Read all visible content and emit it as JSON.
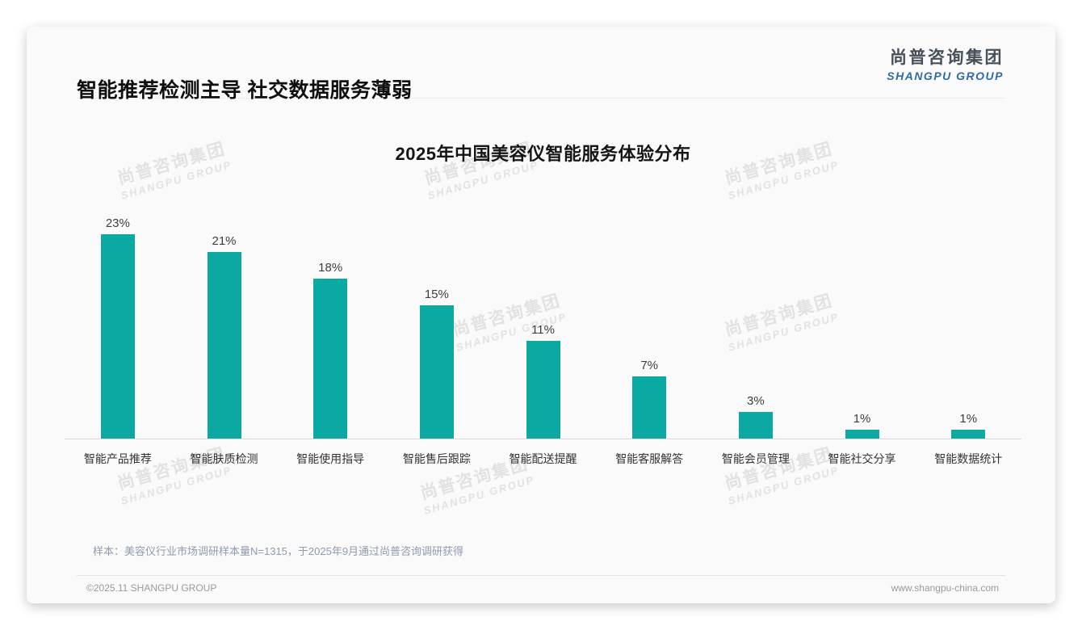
{
  "page": {
    "header": {
      "title": "智能推荐检测主导 社交数据服务薄弱"
    },
    "logo": {
      "cn": "尚普咨询集团",
      "en": "SHANGPU GROUP"
    },
    "watermark": {
      "cn": "尚普咨询集团",
      "en": "SHANGPU GROUP"
    },
    "footer": {
      "sample_note": "样本：美容仪行业市场调研样本量N=1315，于2025年9月通过尚普咨询调研获得",
      "copyright": "©2025.11 SHANGPU GROUP",
      "website": "www.shangpu-china.com"
    },
    "colors": {
      "bar": "#0ba9a1",
      "logo_cn": "#474f58",
      "logo_en": "#2d6ba9",
      "note": "#8e9cac"
    }
  },
  "chart_data": {
    "type": "bar",
    "title": "2025年中国美容仪智能服务体验分布",
    "categories": [
      "智能产品推荐",
      "智能肤质检测",
      "智能使用指导",
      "智能售后跟踪",
      "智能配送提醒",
      "智能客服解答",
      "智能会员管理",
      "智能社交分享",
      "智能数据统计"
    ],
    "values": [
      23,
      21,
      18,
      15,
      11,
      7,
      3,
      1,
      1
    ],
    "unit": "%",
    "value_labels": "above bars",
    "xlabel": "",
    "ylabel": "",
    "ylim": [
      0,
      25
    ],
    "grid": false,
    "legend": "none",
    "bar_color": "#0ba9a1"
  }
}
